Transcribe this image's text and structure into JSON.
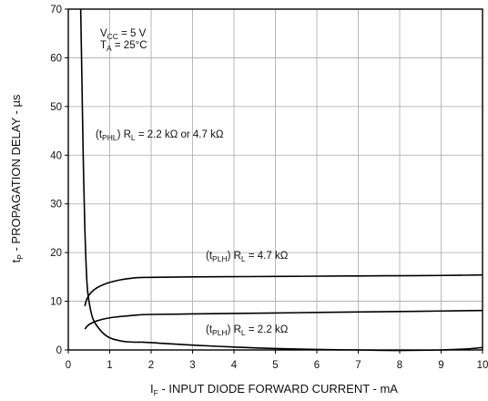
{
  "chart_data": {
    "type": "line",
    "xlabel": {
      "sub": "F",
      "text": " - INPUT DIODE FORWARD CURRENT - mA"
    },
    "ylabel": {
      "sub": "P",
      "text": " - PROPAGATION DELAY - µs"
    },
    "xlim": [
      0,
      10
    ],
    "ylim": [
      0,
      70
    ],
    "xticks": [
      "0",
      "1",
      "2",
      "3",
      "4",
      "5",
      "6",
      "7",
      "8",
      "9",
      "10"
    ],
    "yticks": [
      "0",
      "10",
      "20",
      "30",
      "40",
      "50",
      "60",
      "70"
    ],
    "grid": true,
    "conditions": [
      {
        "main": "V",
        "sub": "CC",
        "rest": " = 5 V"
      },
      {
        "main": "T",
        "sub": "A",
        "rest": " = 25°C"
      }
    ],
    "series": [
      {
        "name_parts": {
          "pre": "(t",
          "sub": "PHL",
          "mid": ") R",
          "sub2": "L",
          "post": " = 2.2 kΩ or 4.7 kΩ"
        },
        "x": [
          0.3,
          0.33,
          0.36,
          0.4,
          0.45,
          0.5,
          0.6,
          0.8,
          1.0,
          1.3,
          1.6,
          1.8,
          2.2,
          3.0,
          4.0,
          5.0,
          6.0,
          7.0,
          8.0,
          9.0,
          9.6,
          10.0
        ],
        "y": [
          70,
          55,
          40,
          25,
          14,
          10,
          6.3,
          3.8,
          2.5,
          1.8,
          1.6,
          1.6,
          1.4,
          1.0,
          0.6,
          0.3,
          0.1,
          0.0,
          -0.1,
          0.0,
          0.2,
          0.5
        ]
      },
      {
        "name_parts": {
          "pre": "(t",
          "sub": "PLH",
          "mid": ") R",
          "sub2": "L",
          "post": " = 4.7 kΩ"
        },
        "x": [
          0.4,
          0.45,
          0.55,
          0.7,
          0.9,
          1.2,
          1.5,
          1.8,
          3.0,
          5.0,
          7.0,
          8.0,
          9.0,
          10.0
        ],
        "y": [
          9.0,
          10.5,
          11.8,
          12.8,
          13.6,
          14.3,
          14.7,
          14.9,
          15.0,
          15.1,
          15.2,
          15.25,
          15.3,
          15.4
        ]
      },
      {
        "name_parts": {
          "pre": "(t",
          "sub": "PLH",
          "mid": ") R",
          "sub2": "L",
          "post": " = 2.2 kΩ"
        },
        "x": [
          0.4,
          0.5,
          0.7,
          1.0,
          1.3,
          1.7,
          2.0,
          3.0,
          4.0,
          5.0,
          6.0,
          7.0,
          8.0,
          9.0,
          10.0
        ],
        "y": [
          4.3,
          5.2,
          6.0,
          6.6,
          6.9,
          7.2,
          7.3,
          7.4,
          7.5,
          7.6,
          7.7,
          7.8,
          7.9,
          8.0,
          8.1
        ]
      }
    ]
  }
}
